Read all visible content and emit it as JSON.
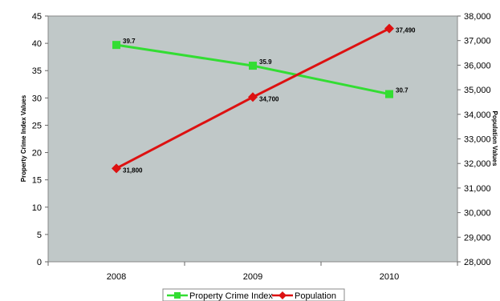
{
  "chart_data": {
    "type": "line",
    "x": [
      "2008",
      "2009",
      "2010"
    ],
    "ylabel": "Property Crime Index Values",
    "y2label": "Population Values",
    "ylim": [
      0,
      45
    ],
    "y2lim": [
      28000,
      38000
    ],
    "y_ticks": [
      "0",
      "5",
      "10",
      "15",
      "20",
      "25",
      "30",
      "35",
      "40",
      "45"
    ],
    "y2_ticks": [
      "28,000",
      "29,000",
      "30,000",
      "31,000",
      "32,000",
      "33,000",
      "34,000",
      "35,000",
      "36,000",
      "37,000",
      "38,000"
    ],
    "plot_background": "#c0c8c8",
    "series": [
      {
        "name": "Property Crime Index",
        "axis": "left",
        "color": "#33dd33",
        "marker": "square",
        "values": [
          39.7,
          35.9,
          30.7
        ],
        "labels": [
          "39.7",
          "35.9",
          "30.7"
        ]
      },
      {
        "name": "Population",
        "axis": "right",
        "color": "#dd1111",
        "marker": "diamond",
        "values": [
          31800,
          34700,
          37490
        ],
        "labels": [
          "31,800",
          "34,700",
          "37,490"
        ]
      }
    ],
    "legend_position": "bottom",
    "grid": false
  }
}
